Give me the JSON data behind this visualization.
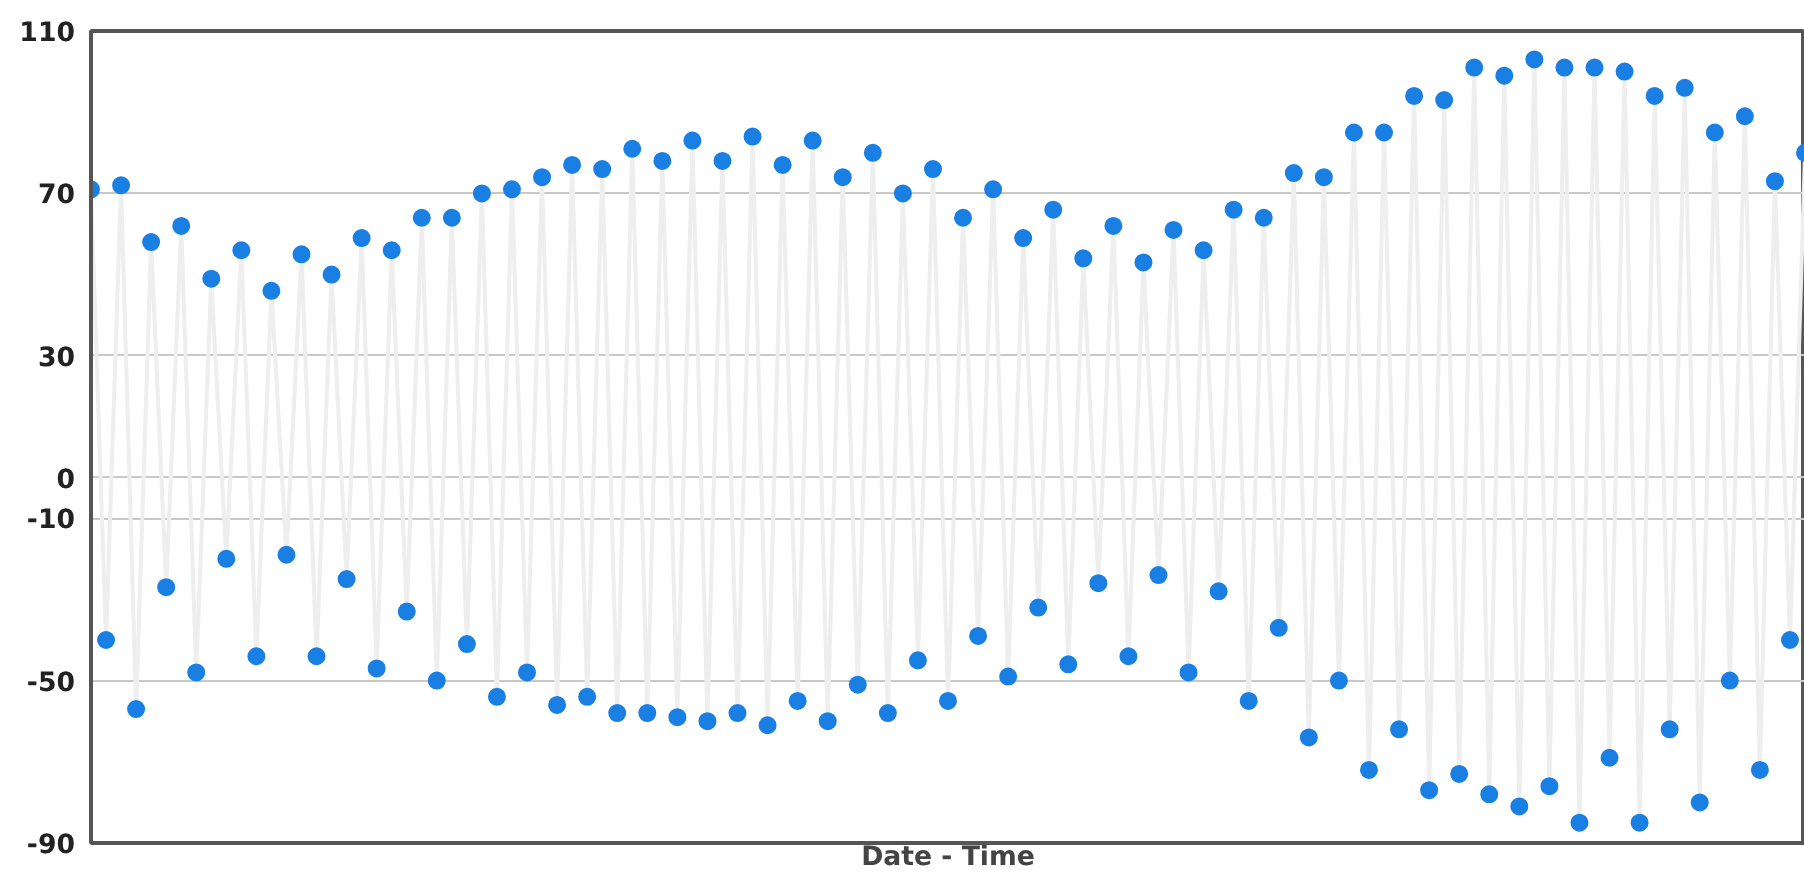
{
  "chart_data": {
    "type": "line",
    "xlabel": "Date - Time",
    "marker": "circle",
    "grid": "y",
    "categories": [
      null,
      null,
      null,
      null,
      null,
      null,
      null,
      null,
      null,
      null,
      null,
      null,
      null,
      null,
      null,
      null,
      null,
      null,
      null,
      null,
      null,
      null,
      null,
      null,
      null,
      null,
      null,
      null,
      null,
      null,
      null,
      null,
      null,
      null,
      null,
      null,
      null,
      null,
      null,
      null,
      null,
      null,
      null,
      null,
      null,
      null,
      null,
      null,
      null,
      null,
      null,
      null,
      null,
      null,
      null,
      null,
      null,
      null,
      null,
      null,
      null,
      null,
      null,
      null,
      null,
      null,
      null,
      null,
      null,
      null,
      null,
      null,
      null,
      null,
      null,
      null,
      null,
      null,
      null,
      null,
      null,
      null,
      null,
      null,
      null,
      null,
      null,
      null,
      null,
      null,
      null,
      null,
      null,
      null,
      null,
      null,
      null,
      null,
      null,
      null,
      null,
      null,
      null,
      null,
      null,
      null,
      null,
      null,
      null,
      null,
      null,
      null,
      null,
      null,
      null
    ],
    "series": [
      {
        "color": "#1a7fe3",
        "values": [
          71,
          -40,
          72,
          -57,
          58,
          -27,
          62,
          -48,
          49,
          -20,
          56,
          -44,
          46,
          -19,
          55,
          -44,
          50,
          -25,
          59,
          -47,
          56,
          -33,
          64,
          -50,
          64,
          -41,
          70,
          -54,
          71,
          -48,
          74,
          -56,
          77,
          -54,
          76,
          -58,
          81,
          -58,
          78,
          -59,
          83,
          -60,
          78,
          -58,
          84,
          -61,
          77,
          -55,
          83,
          -60,
          74,
          -51,
          80,
          -58,
          70,
          -45,
          76,
          -55,
          64,
          -39,
          71,
          -49,
          59,
          -32,
          66,
          -46,
          54,
          -26,
          62,
          -44,
          53,
          -24,
          61,
          -48,
          56,
          -28,
          66,
          -55,
          64,
          -37,
          75,
          -64,
          74,
          -50,
          85,
          -72,
          85,
          -62,
          94,
          -77,
          93,
          -73,
          101,
          -78,
          99,
          -81,
          103,
          -76,
          101,
          -85,
          101,
          -69,
          100,
          -85,
          94,
          -62,
          96,
          -80,
          85,
          -50,
          89,
          -72,
          73,
          -40,
          80
        ]
      }
    ],
    "ylim": [
      -90,
      110
    ],
    "yticks": [
      -90,
      -50,
      -10,
      0,
      30,
      70,
      110
    ]
  }
}
